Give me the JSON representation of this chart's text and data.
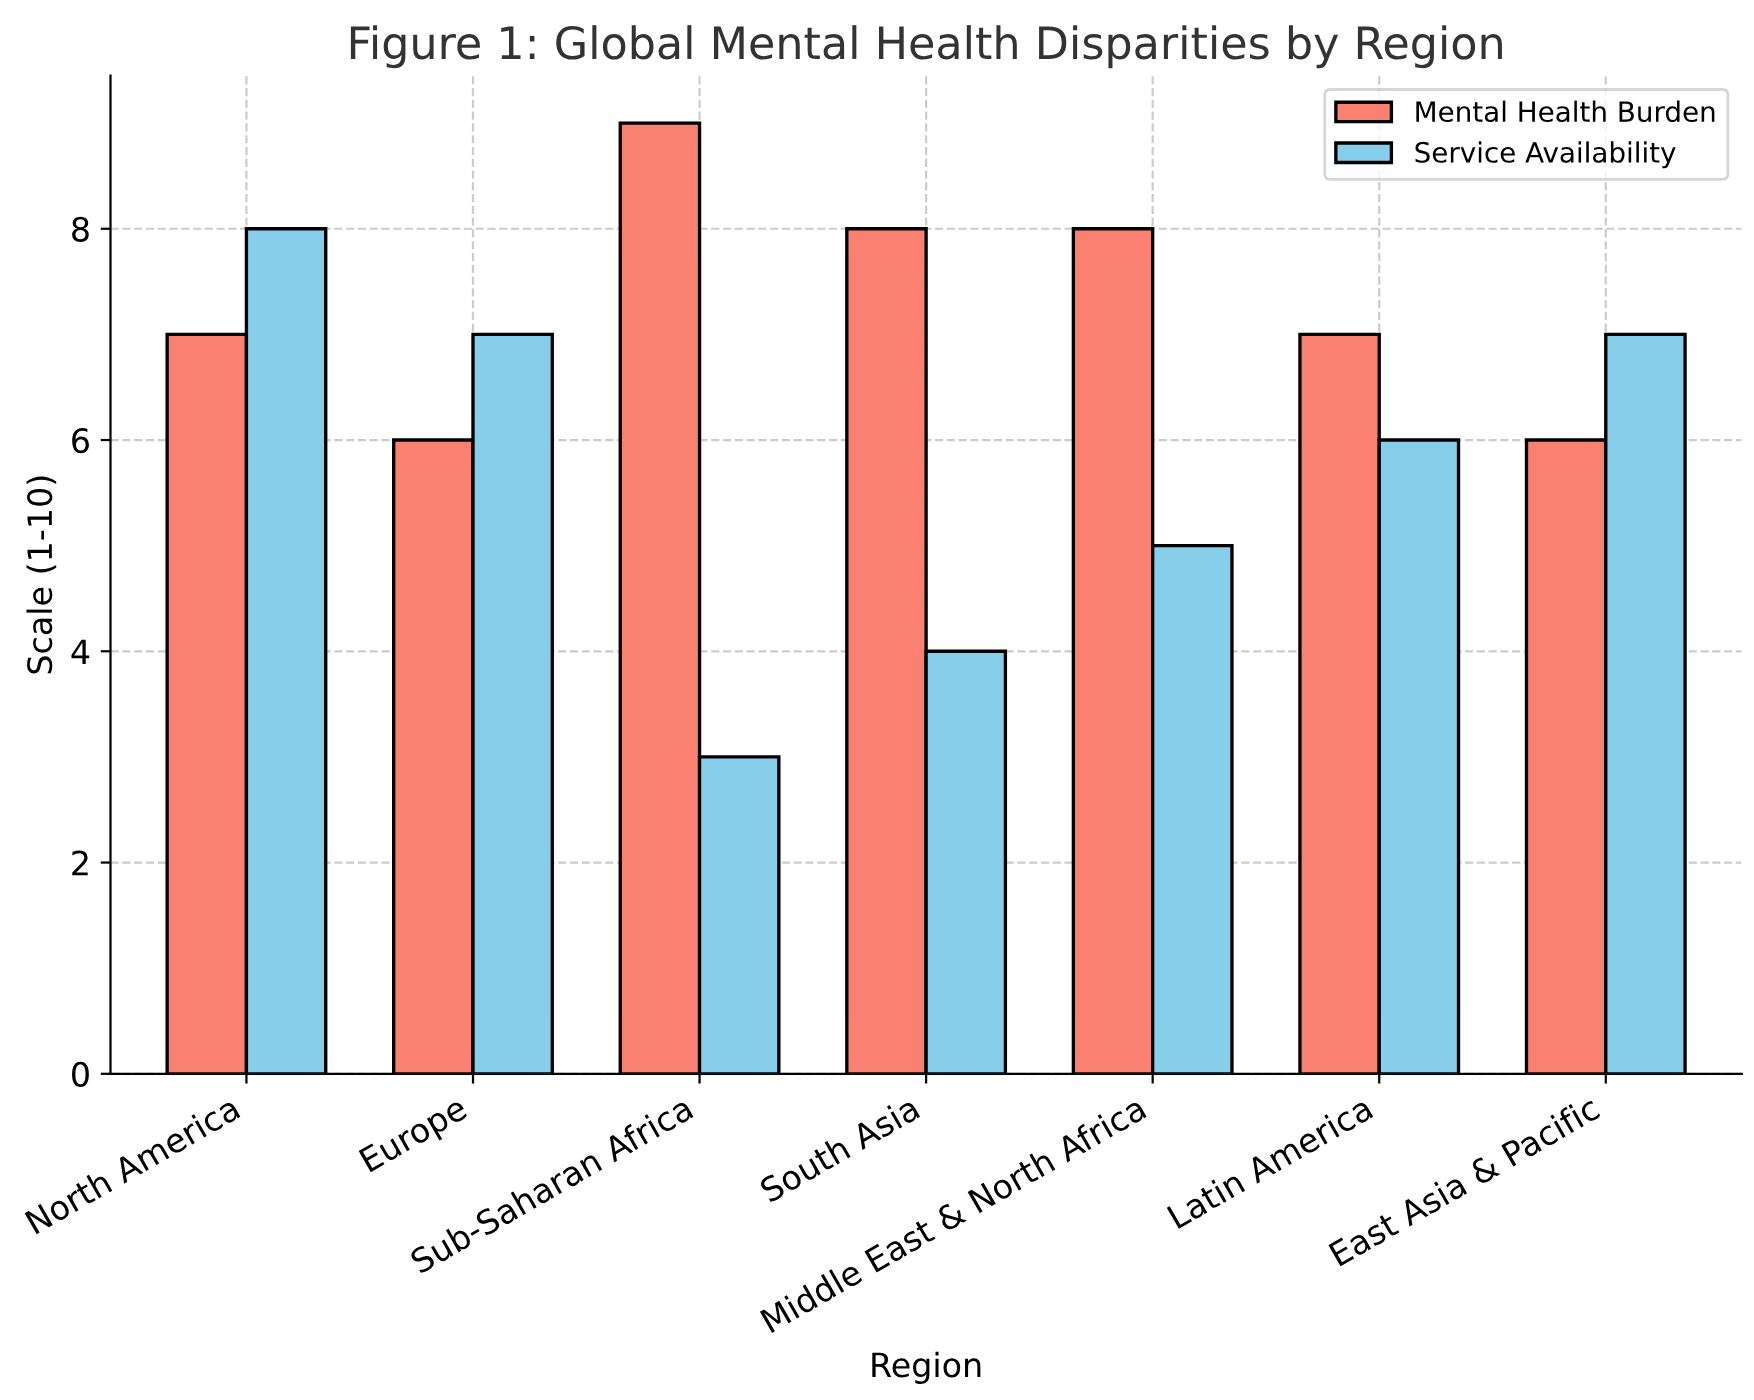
{
  "chart_data": {
    "type": "bar",
    "title": "Figure 1: Global Mental Health Disparities by Region",
    "xlabel": "Region",
    "ylabel": "Scale (1-10)",
    "categories": [
      "North America",
      "Europe",
      "Sub-Saharan Africa",
      "South Asia",
      "Middle East & North Africa",
      "Latin America",
      "East Asia & Pacific"
    ],
    "series": [
      {
        "name": "Mental Health Burden",
        "color": "#fa8072",
        "values": [
          7,
          6,
          9,
          8,
          8,
          7,
          6
        ]
      },
      {
        "name": "Service Availability",
        "color": "#87ceeb",
        "values": [
          8,
          7,
          3,
          4,
          5,
          6,
          7
        ]
      }
    ],
    "ylim": [
      0,
      9.45
    ],
    "yticks": [
      0,
      2,
      4,
      6,
      8
    ],
    "grid": true,
    "legend": "top right"
  }
}
